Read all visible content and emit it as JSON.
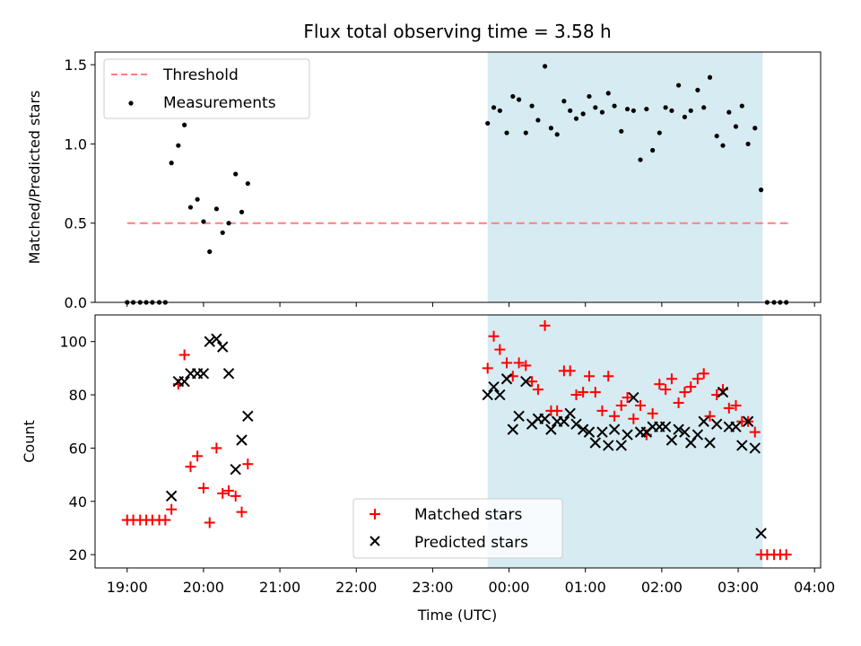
{
  "title": "Flux total observing time = 3.58 h",
  "colors": {
    "threshold": "#ff7f7f",
    "measurements": "#000000",
    "matched": "#ff0000",
    "predicted": "#000000",
    "span": "#add8e6"
  },
  "chart_data": [
    {
      "type": "scatter",
      "ylabel": "Matched/Predicted stars",
      "ylim": [
        0,
        1.58
      ],
      "xlim_hours": [
        18.58,
        28.08
      ],
      "yticks": [
        0,
        0.5,
        1.0,
        1.5
      ],
      "ytick_labels": [
        "0.0",
        "0.5",
        "1.0",
        "1.5"
      ],
      "highlight_span_hours": [
        23.72,
        27.32
      ],
      "legend": {
        "position": "top-left",
        "entries": [
          "Threshold",
          "Measurements"
        ]
      },
      "series": [
        {
          "name": "Threshold",
          "kind": "line",
          "x": [
            19.0,
            27.65
          ],
          "y": [
            0.5,
            0.5
          ]
        },
        {
          "name": "Measurements",
          "kind": "dot",
          "x": [
            19.0,
            19.08,
            19.17,
            19.25,
            19.33,
            19.42,
            19.5,
            19.58,
            19.67,
            19.75,
            19.83,
            19.92,
            20.0,
            20.08,
            20.17,
            20.25,
            20.33,
            20.42,
            20.5,
            20.58,
            23.72,
            23.8,
            23.88,
            23.97,
            24.05,
            24.13,
            24.22,
            24.3,
            24.38,
            24.47,
            24.55,
            24.63,
            24.72,
            24.8,
            24.88,
            24.97,
            25.05,
            25.13,
            25.22,
            25.3,
            25.38,
            25.47,
            25.55,
            25.63,
            25.72,
            25.8,
            25.88,
            25.97,
            26.05,
            26.13,
            26.22,
            26.3,
            26.38,
            26.47,
            26.55,
            26.63,
            26.72,
            26.8,
            26.88,
            26.97,
            27.05,
            27.13,
            27.22,
            27.3,
            27.38,
            27.47,
            27.55,
            27.63
          ],
          "y": [
            0,
            0,
            0,
            0,
            0,
            0,
            0,
            0.88,
            0.99,
            1.12,
            0.6,
            0.65,
            0.51,
            0.32,
            0.59,
            0.44,
            0.5,
            0.81,
            0.57,
            0.75,
            1.13,
            1.23,
            1.21,
            1.07,
            1.3,
            1.28,
            1.07,
            1.24,
            1.15,
            1.49,
            1.1,
            1.06,
            1.27,
            1.21,
            1.16,
            1.19,
            1.3,
            1.23,
            1.2,
            1.32,
            1.24,
            1.08,
            1.22,
            1.21,
            0.9,
            1.22,
            0.96,
            1.07,
            1.23,
            1.21,
            1.37,
            1.17,
            1.21,
            1.34,
            1.23,
            1.42,
            1.05,
            0.99,
            1.2,
            1.11,
            1.24,
            1.0,
            1.1,
            0.71,
            0,
            0,
            0,
            0
          ]
        }
      ]
    },
    {
      "type": "scatter",
      "ylabel": "Count",
      "xlabel": "Time (UTC)",
      "ylim": [
        15,
        110
      ],
      "xlim_hours": [
        18.58,
        28.08
      ],
      "yticks": [
        20,
        40,
        60,
        80,
        100
      ],
      "xticks_hours": [
        19,
        20,
        21,
        22,
        23,
        24,
        25,
        26,
        27,
        28
      ],
      "xtick_labels": [
        "19:00",
        "20:00",
        "21:00",
        "22:00",
        "23:00",
        "00:00",
        "01:00",
        "02:00",
        "03:00",
        "04:00"
      ],
      "highlight_span_hours": [
        23.72,
        27.32
      ],
      "legend": {
        "position": "lower-center",
        "entries": [
          "Matched stars",
          "Predicted stars"
        ]
      },
      "series": [
        {
          "name": "Matched stars",
          "marker": "plus",
          "x": [
            19.0,
            19.08,
            19.17,
            19.25,
            19.33,
            19.42,
            19.5,
            19.58,
            19.67,
            19.75,
            19.83,
            19.92,
            20.0,
            20.08,
            20.17,
            20.25,
            20.33,
            20.42,
            20.5,
            20.58,
            23.72,
            23.8,
            23.88,
            23.97,
            24.05,
            24.13,
            24.22,
            24.3,
            24.38,
            24.47,
            24.55,
            24.63,
            24.72,
            24.8,
            24.88,
            24.97,
            25.05,
            25.13,
            25.22,
            25.3,
            25.38,
            25.47,
            25.55,
            25.63,
            25.72,
            25.8,
            25.88,
            25.97,
            26.05,
            26.13,
            26.22,
            26.3,
            26.38,
            26.47,
            26.55,
            26.63,
            26.72,
            26.8,
            26.88,
            26.97,
            27.05,
            27.13,
            27.22,
            27.3,
            27.38,
            27.47,
            27.55,
            27.63
          ],
          "y": [
            33,
            33,
            33,
            33,
            33,
            33,
            33,
            37,
            84,
            95,
            53,
            57,
            45,
            32,
            60,
            43,
            44,
            42,
            36,
            54,
            90,
            102,
            97,
            92,
            87,
            92,
            91,
            85,
            82,
            106,
            74,
            74,
            89,
            89,
            80,
            81,
            87,
            81,
            74,
            87,
            72,
            76,
            79,
            71,
            76,
            65,
            73,
            84,
            82,
            86,
            77,
            81,
            83,
            86,
            88,
            72,
            80,
            82,
            75,
            76,
            70,
            70,
            66,
            20,
            20,
            20,
            20,
            20
          ]
        },
        {
          "name": "Predicted stars",
          "marker": "x",
          "x": [
            19.58,
            19.67,
            19.75,
            19.83,
            19.92,
            20.0,
            20.08,
            20.17,
            20.25,
            20.33,
            20.42,
            20.5,
            20.58,
            23.72,
            23.8,
            23.88,
            23.97,
            24.05,
            24.13,
            24.22,
            24.3,
            24.38,
            24.47,
            24.55,
            24.63,
            24.72,
            24.8,
            24.88,
            24.97,
            25.05,
            25.13,
            25.22,
            25.3,
            25.38,
            25.47,
            25.55,
            25.63,
            25.72,
            25.8,
            25.88,
            25.97,
            26.05,
            26.13,
            26.22,
            26.3,
            26.38,
            26.47,
            26.55,
            26.63,
            26.72,
            26.8,
            26.88,
            26.97,
            27.05,
            27.13,
            27.22,
            27.3
          ],
          "y": [
            42,
            85,
            85,
            88,
            88,
            88,
            100,
            101,
            98,
            88,
            52,
            63,
            72,
            80,
            83,
            80,
            86,
            67,
            72,
            85,
            69,
            71,
            71,
            67,
            70,
            70,
            73,
            69,
            67,
            66,
            62,
            66,
            61,
            67,
            61,
            65,
            79,
            66,
            66,
            68,
            68,
            68,
            63,
            67,
            66,
            62,
            65,
            70,
            62,
            69,
            81,
            68,
            68,
            61,
            70,
            60,
            28
          ]
        }
      ]
    }
  ]
}
